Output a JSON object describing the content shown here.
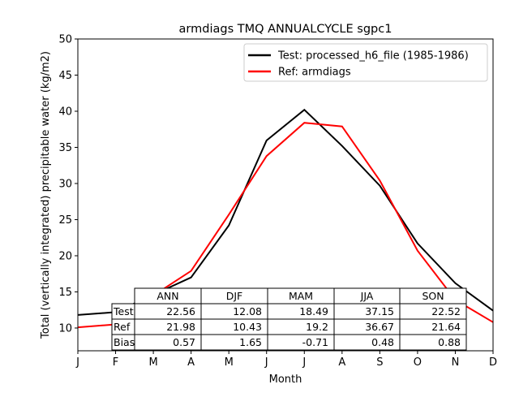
{
  "chart_data": {
    "type": "line",
    "title": "armdiags TMQ ANNUALCYCLE sgpc1",
    "xlabel": "Month",
    "ylabel": "Total (vertically integrated) precipitable water (kg/m2)",
    "categories": [
      "J",
      "F",
      "M",
      "A",
      "M",
      "J",
      "J",
      "A",
      "S",
      "O",
      "N",
      "D"
    ],
    "ylim": [
      6.85,
      50
    ],
    "yticks": [
      10,
      15,
      20,
      25,
      30,
      35,
      40,
      45,
      50
    ],
    "grid": false,
    "legend_position": "top-right",
    "series": [
      {
        "name": "Test: processed_h6_file (1985-1986)",
        "color": "#000000",
        "values": [
          11.8,
          12.2,
          14.6,
          17.0,
          24.2,
          35.95,
          40.2,
          35.2,
          29.7,
          21.7,
          16.2,
          12.4
        ]
      },
      {
        "name": "Ref: armdiags",
        "color": "#ff0000",
        "values": [
          10.1,
          10.5,
          14.5,
          17.9,
          25.7,
          33.8,
          38.4,
          37.9,
          30.4,
          20.7,
          13.9,
          10.8
        ]
      }
    ],
    "table": {
      "columns": [
        "ANN",
        "DJF",
        "MAM",
        "JJA",
        "SON"
      ],
      "rows": [
        {
          "label": "Test",
          "values": [
            "22.56",
            "12.08",
            "18.49",
            "37.15",
            "22.52"
          ]
        },
        {
          "label": "Ref",
          "values": [
            "21.98",
            "10.43",
            "19.2",
            "36.67",
            "21.64"
          ]
        },
        {
          "label": "Bias",
          "values": [
            "0.57",
            "1.65",
            "-0.71",
            "0.48",
            "0.88"
          ]
        }
      ]
    }
  }
}
